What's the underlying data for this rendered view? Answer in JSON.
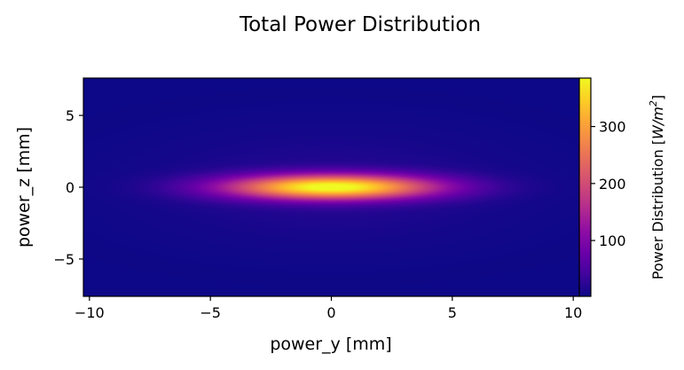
{
  "chart_data": {
    "type": "heatmap",
    "title": "Total Power Distribution",
    "xlabel": "power_y [mm]",
    "ylabel": "power_z [mm]",
    "xlim": [
      -10.25,
      10.25
    ],
    "ylim": [
      -7.6,
      7.6
    ],
    "x_ticks": [
      -10,
      -5,
      0,
      5,
      10
    ],
    "x_tick_labels": [
      "−10",
      "−5",
      "0",
      "5",
      "10"
    ],
    "y_ticks": [
      -5,
      0,
      5
    ],
    "y_tick_labels": [
      "−5",
      "0",
      "5"
    ],
    "colormap": "plasma",
    "colorbar": {
      "label_prefix": "Power Distribution [",
      "label_unit": "W/m",
      "label_exp": "2",
      "label_suffix": "]",
      "range": [
        2,
        385
      ],
      "ticks": [
        100,
        200,
        300
      ],
      "tick_labels": [
        "100",
        "200",
        "300"
      ]
    },
    "field": {
      "peak": 383,
      "center": [
        0,
        0
      ],
      "sigma_y_mm": 3.0,
      "sigma_z_mm": 0.6,
      "halo_amplitude": 18,
      "halo_sigma_y_mm": 5.0,
      "halo_sigma_z_mm": 2.5,
      "background": 2
    }
  }
}
